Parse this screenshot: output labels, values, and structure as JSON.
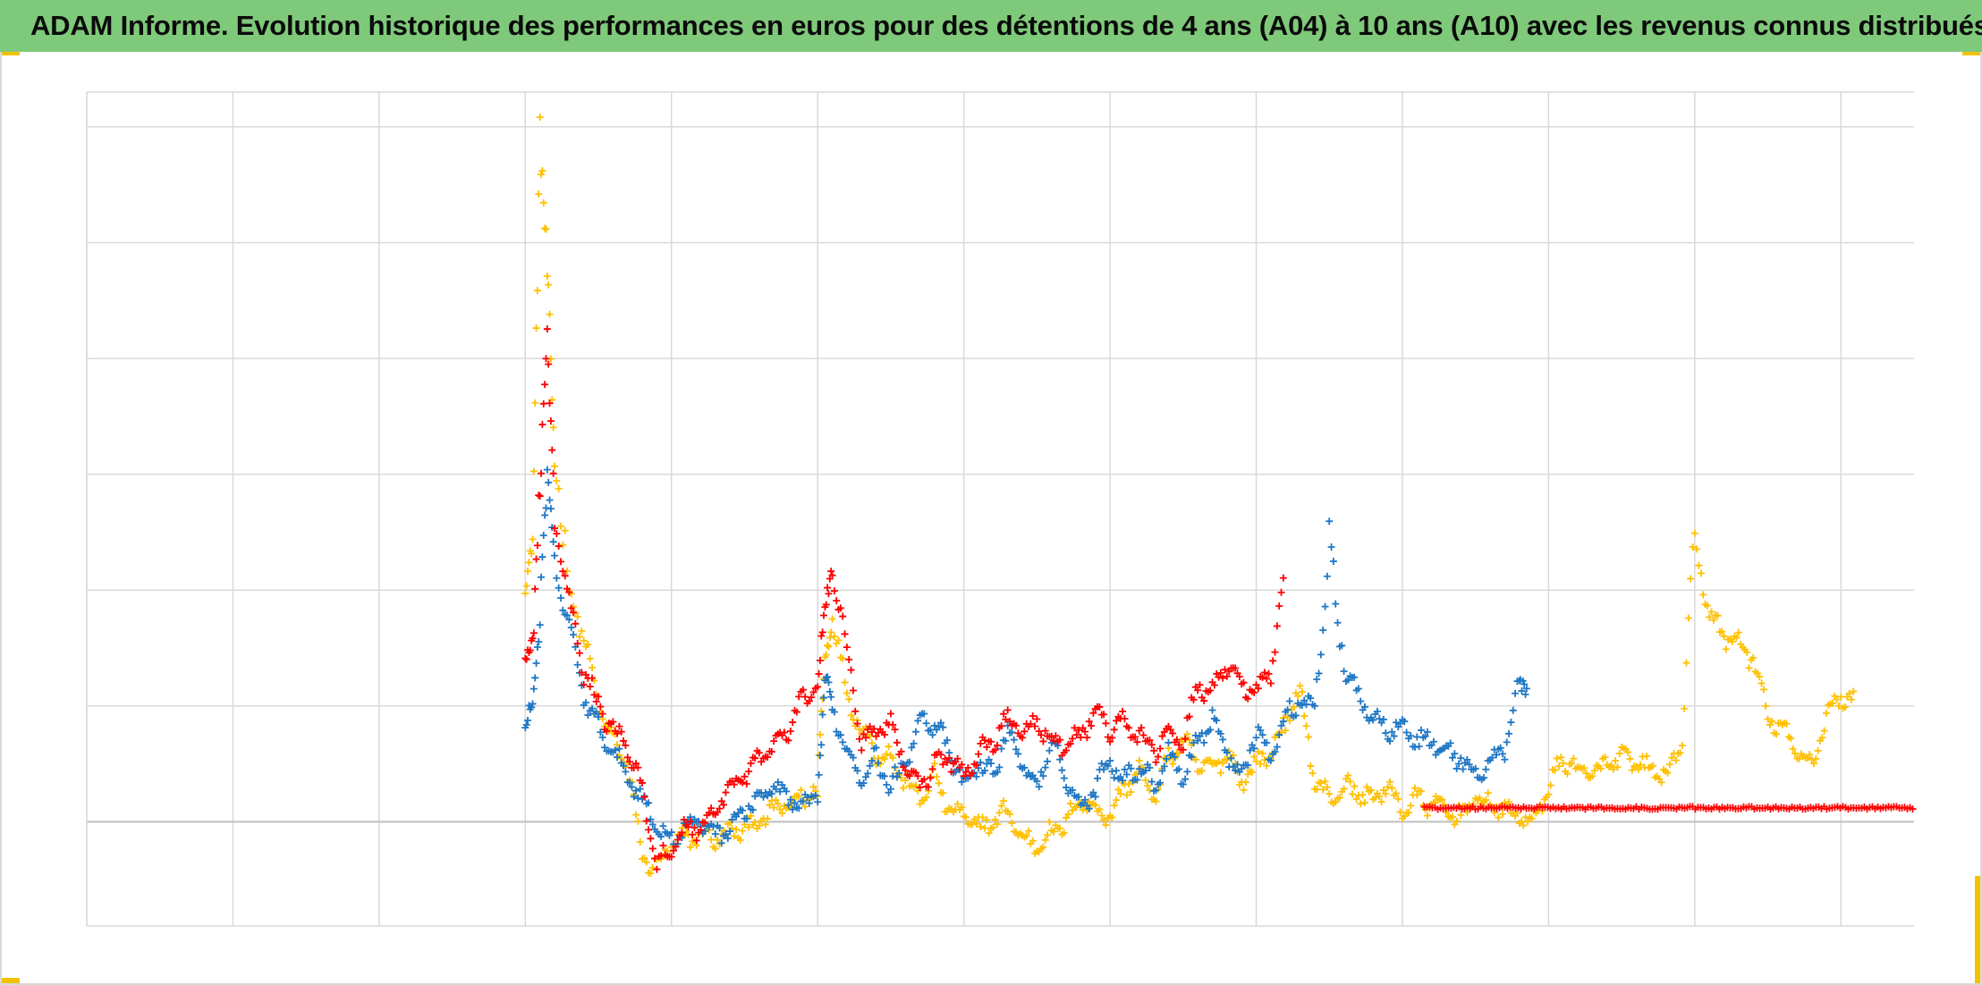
{
  "title": "ADAM Informe. Evolution historique des performances en euros pour des détentions de 4 ans (A04) à 10 ans (A10) avec les revenus connus distribués",
  "colors": {
    "title_bg": "#7fc97a",
    "grid": "#d9d9d9",
    "axis_line": "#bfbfbf",
    "corner_accent": "#f2c200",
    "series_blue": "#1f77c4",
    "series_red": "#ff0000",
    "series_yellow": "#ffc000"
  },
  "chart_data": {
    "type": "scatter",
    "marker": "plus",
    "title": "ADAM Informe. Evolution historique des performances en euros pour des détentions de 4 ans (A04) à 10 ans (A10) avec les revenus connus distribués",
    "xlabel": "",
    "ylabel": "",
    "tick_labels_visible": false,
    "grid": true,
    "x_domain": [
      0,
      12.5
    ],
    "y_domain": [
      -0.9,
      6.3
    ],
    "x_gridlines": [
      0,
      1,
      2,
      3,
      4,
      5,
      6,
      7,
      8,
      9,
      10,
      11,
      12
    ],
    "y_gridlines": [
      0,
      1,
      2,
      3,
      4,
      5,
      6,
      7
    ],
    "legend": "none",
    "series": [
      {
        "color": "#1f77c4",
        "x": [
          3.0,
          3.05,
          3.1,
          3.15,
          3.2,
          3.3,
          3.4,
          3.5,
          3.6,
          3.7,
          3.8,
          3.9,
          4.0,
          4.1,
          4.2,
          4.3,
          4.4,
          4.5,
          4.6,
          4.7,
          4.8,
          4.9,
          5.0,
          5.05,
          5.1,
          5.2,
          5.3,
          5.4,
          5.5,
          5.6,
          5.7,
          5.8,
          5.9,
          6.0,
          6.1,
          6.2,
          6.3,
          6.4,
          6.5,
          6.6,
          6.7,
          6.8,
          6.9,
          7.0,
          7.1,
          7.2,
          7.3,
          7.4,
          7.5,
          7.6,
          7.7,
          7.8,
          7.9,
          8.0,
          8.1,
          8.2,
          8.3,
          8.4,
          8.5,
          8.6,
          8.7,
          8.8,
          8.9,
          9.0,
          9.1,
          9.2,
          9.3,
          9.4,
          9.5,
          9.6,
          9.7,
          9.8,
          9.85
        ],
        "y": [
          0.8,
          1.0,
          1.8,
          3.0,
          2.2,
          1.7,
          1.1,
          0.8,
          0.6,
          0.4,
          0.2,
          -0.05,
          -0.15,
          -0.05,
          0.0,
          -0.1,
          -0.05,
          0.1,
          0.2,
          0.3,
          0.2,
          0.1,
          0.25,
          1.2,
          1.0,
          0.6,
          0.4,
          0.55,
          0.3,
          0.5,
          0.9,
          0.85,
          0.6,
          0.3,
          0.5,
          0.4,
          0.8,
          0.5,
          0.3,
          0.65,
          0.4,
          0.1,
          0.3,
          0.55,
          0.35,
          0.5,
          0.3,
          0.6,
          0.4,
          0.7,
          0.9,
          0.6,
          0.4,
          0.8,
          0.55,
          0.9,
          1.05,
          1.0,
          2.4,
          1.3,
          1.1,
          0.9,
          0.8,
          0.85,
          0.7,
          0.7,
          0.6,
          0.55,
          0.4,
          0.5,
          0.65,
          1.2,
          1.15
        ]
      },
      {
        "color": "#ff0000",
        "x": [
          3.0,
          3.05,
          3.1,
          3.15,
          3.2,
          3.3,
          3.4,
          3.5,
          3.6,
          3.7,
          3.8,
          3.9,
          4.0,
          4.1,
          4.2,
          4.3,
          4.4,
          4.5,
          4.6,
          4.7,
          4.8,
          4.9,
          5.0,
          5.05,
          5.1,
          5.2,
          5.3,
          5.4,
          5.5,
          5.6,
          5.7,
          5.8,
          5.9,
          6.0,
          6.1,
          6.2,
          6.3,
          6.4,
          6.5,
          6.6,
          6.7,
          6.8,
          6.9,
          7.0,
          7.1,
          7.2,
          7.3,
          7.4,
          7.5,
          7.6,
          7.7,
          7.8,
          7.9,
          8.0,
          8.1,
          8.2,
          8.3,
          8.4,
          8.5
        ],
        "y": [
          1.3,
          1.6,
          3.0,
          4.1,
          2.6,
          1.9,
          1.3,
          1.0,
          0.8,
          0.65,
          0.25,
          -0.35,
          -0.25,
          -0.05,
          -0.05,
          0.1,
          0.3,
          0.4,
          0.55,
          0.65,
          0.8,
          1.05,
          1.2,
          1.8,
          2.2,
          1.5,
          0.7,
          0.8,
          0.85,
          0.5,
          0.3,
          0.5,
          0.55,
          0.4,
          0.6,
          0.7,
          0.9,
          0.75,
          0.85,
          0.7,
          0.65,
          0.75,
          0.95,
          0.8,
          0.85,
          0.75,
          0.6,
          0.8,
          0.65,
          1.2,
          1.1,
          1.35,
          1.2,
          1.1,
          1.3,
          2.2,
          null,
          null,
          null
        ]
      },
      {
        "color": "#ffc000",
        "x": [
          3.0,
          3.05,
          3.1,
          3.15,
          3.2,
          3.3,
          3.4,
          3.5,
          3.6,
          3.7,
          3.8,
          3.9,
          4.0,
          4.1,
          4.2,
          4.3,
          4.4,
          4.5,
          4.6,
          4.7,
          4.8,
          4.9,
          5.0,
          5.05,
          5.1,
          5.2,
          5.3,
          5.4,
          5.5,
          5.6,
          5.7,
          5.8,
          5.9,
          6.0,
          6.1,
          6.2,
          6.3,
          6.4,
          6.5,
          6.6,
          6.7,
          6.8,
          6.9,
          7.0,
          7.1,
          7.2,
          7.3,
          7.4,
          7.5,
          7.6,
          7.7,
          7.8,
          7.9,
          8.0,
          8.1,
          8.2,
          8.3,
          8.4,
          8.5,
          8.6,
          8.7,
          8.8,
          8.9,
          9.0,
          9.1,
          9.2,
          9.3,
          9.4,
          9.5,
          9.6,
          9.7,
          9.8,
          9.9,
          10.0,
          10.1,
          10.2,
          10.3,
          10.4,
          10.5,
          10.6,
          10.7,
          10.8,
          10.9,
          11.0,
          11.1,
          11.2,
          11.3,
          11.4,
          11.5,
          11.6,
          11.7,
          11.8,
          11.9,
          12.0,
          12.1,
          12.2,
          12.3
        ],
        "y": [
          2.0,
          2.5,
          5.9,
          4.7,
          3.2,
          2.0,
          1.6,
          1.0,
          0.7,
          0.5,
          -0.3,
          -0.4,
          -0.2,
          -0.15,
          -0.1,
          -0.15,
          -0.1,
          -0.05,
          0.0,
          0.1,
          0.15,
          0.2,
          0.3,
          1.4,
          1.8,
          1.1,
          0.8,
          0.6,
          0.55,
          0.35,
          0.2,
          0.4,
          0.1,
          0.05,
          -0.05,
          0.0,
          0.1,
          -0.15,
          -0.2,
          -0.1,
          0.0,
          0.2,
          0.1,
          0.05,
          0.3,
          0.45,
          0.2,
          0.55,
          0.7,
          0.5,
          0.45,
          0.6,
          0.35,
          0.5,
          0.6,
          0.85,
          1.15,
          0.35,
          0.2,
          0.3,
          0.25,
          0.2,
          0.3,
          0.1,
          0.2,
          0.15,
          0.1,
          0.05,
          0.2,
          0.15,
          0.1,
          0.05,
          0.0,
          0.3,
          0.55,
          0.45,
          0.4,
          0.5,
          0.55,
          0.5,
          0.45,
          0.4,
          0.6,
          2.4,
          1.8,
          1.6,
          1.55,
          1.4,
          0.9,
          0.8,
          0.6,
          0.5,
          0.9,
          1.1,
          1.0,
          null,
          null
        ]
      },
      {
        "color": "#ff0000",
        "style": "flat-band",
        "x": [
          9.15,
          12.5
        ],
        "y": [
          0.12,
          0.12
        ]
      }
    ]
  }
}
